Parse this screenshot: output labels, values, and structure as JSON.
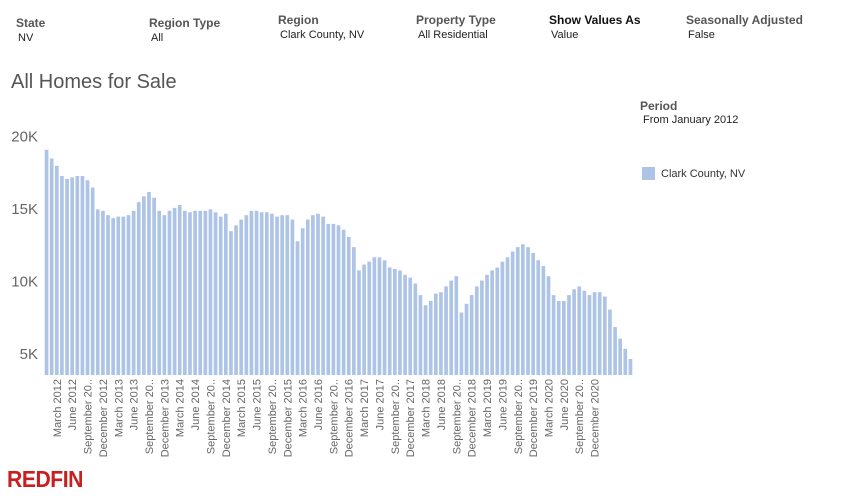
{
  "filters": [
    {
      "label": "State",
      "value": "NV"
    },
    {
      "label": "Region Type",
      "value": "All"
    },
    {
      "label": "Region",
      "value": "Clark County, NV"
    },
    {
      "label": "Property Type",
      "value": "All Residential"
    },
    {
      "label": "Show Values As",
      "value": "Value"
    },
    {
      "label": "Seasonally Adjusted",
      "value": "False"
    }
  ],
  "period": {
    "label": "Period",
    "value": "From January 2012"
  },
  "brand": {
    "name": "REDFIN",
    "color": "#c82021"
  },
  "chart_data": {
    "type": "bar",
    "title": "All Homes for Sale",
    "xlabel": "",
    "ylabel": "",
    "ylim": [
      3500,
      20500
    ],
    "yticks": [
      {
        "value": 5000,
        "label": "5K"
      },
      {
        "value": 10000,
        "label": "10K"
      },
      {
        "value": 15000,
        "label": "15K"
      },
      {
        "value": 20000,
        "label": "20K"
      }
    ],
    "grid": false,
    "legend_position": "right",
    "bar_color": "#aec4e6",
    "series": [
      {
        "name": "Clark County, NV",
        "values": [
          19000,
          18400,
          17900,
          17200,
          17000,
          17100,
          17200,
          17200,
          16900,
          16400,
          14900,
          14800,
          14500,
          14300,
          14400,
          14400,
          14500,
          14800,
          15400,
          15800,
          16100,
          15700,
          14800,
          14500,
          14800,
          15000,
          15200,
          14800,
          14700,
          14800,
          14800,
          14800,
          14900,
          14700,
          14400,
          14600,
          13400,
          13800,
          14200,
          14500,
          14800,
          14800,
          14700,
          14700,
          14600,
          14400,
          14500,
          14500,
          14200,
          12700,
          13600,
          14200,
          14500,
          14600,
          14400,
          13900,
          13900,
          13800,
          13500,
          13000,
          12300,
          10700,
          11100,
          11300,
          11600,
          11600,
          11400,
          10900,
          10800,
          10700,
          10400,
          10200,
          9800,
          9000,
          8300,
          8600,
          9100,
          9200,
          9600,
          10000,
          10300,
          7800,
          8400,
          9000,
          9600,
          10000,
          10400,
          10700,
          10900,
          11300,
          11600,
          12000,
          12300,
          12500,
          12300,
          11900,
          11400,
          11000,
          10300,
          9000,
          8600,
          8600,
          9000,
          9400,
          9600,
          9300,
          9000,
          9200,
          9200,
          8900,
          8000,
          6800,
          6000,
          5300,
          4600
        ]
      }
    ],
    "x_tick_labels": [
      {
        "index": 2,
        "label": "March 2012"
      },
      {
        "index": 5,
        "label": "June 2012"
      },
      {
        "index": 8,
        "label": "September 20.."
      },
      {
        "index": 11,
        "label": "December 2012"
      },
      {
        "index": 14,
        "label": "March 2013"
      },
      {
        "index": 17,
        "label": "June 2013"
      },
      {
        "index": 20,
        "label": "September 20.."
      },
      {
        "index": 23,
        "label": "December 2013"
      },
      {
        "index": 26,
        "label": "March 2014"
      },
      {
        "index": 29,
        "label": "June 2014"
      },
      {
        "index": 32,
        "label": "September 20.."
      },
      {
        "index": 35,
        "label": "December 2014"
      },
      {
        "index": 38,
        "label": "March 2015"
      },
      {
        "index": 41,
        "label": "June 2015"
      },
      {
        "index": 44,
        "label": "September 20.."
      },
      {
        "index": 47,
        "label": "December 2015"
      },
      {
        "index": 50,
        "label": "March 2016"
      },
      {
        "index": 53,
        "label": "June 2016"
      },
      {
        "index": 56,
        "label": "September 20.."
      },
      {
        "index": 59,
        "label": "December 2016"
      },
      {
        "index": 62,
        "label": "March 2017"
      },
      {
        "index": 65,
        "label": "June 2017"
      },
      {
        "index": 68,
        "label": "September 20.."
      },
      {
        "index": 71,
        "label": "December 2017"
      },
      {
        "index": 74,
        "label": "March 2018"
      },
      {
        "index": 77,
        "label": "June 2018"
      },
      {
        "index": 80,
        "label": "September 20.."
      },
      {
        "index": 83,
        "label": "December 2018"
      },
      {
        "index": 86,
        "label": "March 2019"
      },
      {
        "index": 89,
        "label": "June 2019"
      },
      {
        "index": 92,
        "label": "September 20.."
      },
      {
        "index": 95,
        "label": "December 2019"
      },
      {
        "index": 98,
        "label": "March 2020"
      },
      {
        "index": 101,
        "label": "June 2020"
      },
      {
        "index": 104,
        "label": "September 20.."
      },
      {
        "index": 107,
        "label": "December 2020"
      }
    ]
  }
}
